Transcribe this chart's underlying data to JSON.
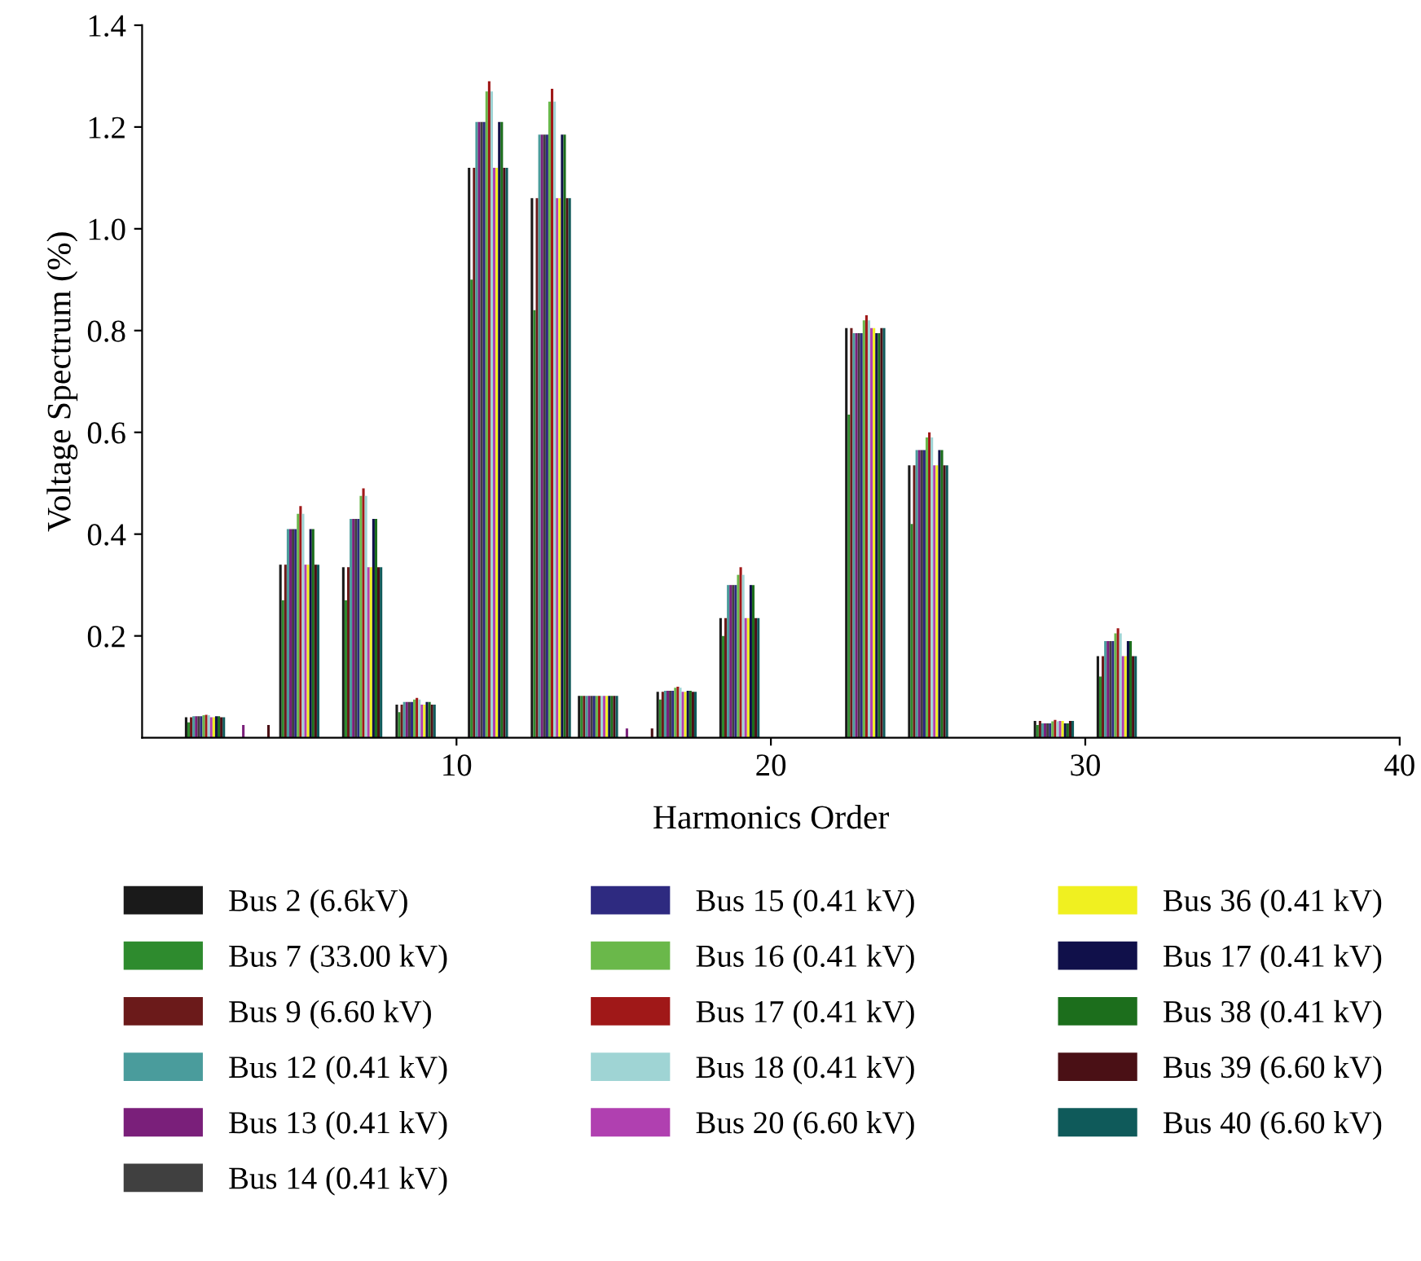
{
  "chart_data": {
    "type": "bar",
    "xlabel": "Harmonics Order",
    "ylabel": "Voltage Spectrum (%)",
    "x": [
      2,
      3.5,
      5,
      7,
      8.7,
      11,
      13,
      14.5,
      15.7,
      17,
      19,
      23,
      25,
      29,
      31
    ],
    "xlim": [
      0,
      40
    ],
    "xticks": [
      10,
      20,
      30,
      40
    ],
    "ylim": [
      0,
      1.4
    ],
    "yticks": [
      0.2,
      0.4,
      0.6,
      0.8,
      {
        "value": 1.0,
        "label": "1.0"
      },
      1.2,
      1.4
    ],
    "grid": false,
    "legend": "bottom",
    "series": [
      {
        "name": "Bus 2 (6.6kV)",
        "color": "#1a1a1a",
        "values": [
          0.04,
          null,
          0.34,
          0.335,
          0.065,
          1.12,
          1.06,
          0.082,
          null,
          0.09,
          0.235,
          0.805,
          0.535,
          0.033,
          0.16
        ]
      },
      {
        "name": "Bus 7 (33.00 kV)",
        "color": "#2e8b2e",
        "values": [
          0.03,
          null,
          0.27,
          0.27,
          0.05,
          0.9,
          0.84,
          0.082,
          null,
          0.075,
          0.2,
          0.635,
          0.42,
          0.025,
          0.12
        ]
      },
      {
        "name": "Bus 9 (6.60 kV)",
        "color": "#6b1a1a",
        "values": [
          0.04,
          null,
          0.34,
          0.335,
          0.065,
          1.12,
          1.06,
          0.082,
          null,
          0.09,
          0.235,
          0.805,
          0.535,
          0.033,
          0.16
        ]
      },
      {
        "name": "Bus 12 (0.41 kV)",
        "color": "#4a9c9c",
        "values": [
          0.042,
          null,
          0.41,
          0.43,
          0.07,
          1.21,
          1.185,
          0.082,
          null,
          0.092,
          0.3,
          0.795,
          0.565,
          0.028,
          0.19
        ]
      },
      {
        "name": "Bus 13 (0.41 kV)",
        "color": "#7a1f7a",
        "values": [
          0.042,
          0.025,
          0.41,
          0.43,
          0.07,
          1.21,
          1.185,
          0.082,
          0.018,
          0.092,
          0.3,
          0.795,
          0.565,
          0.028,
          0.19
        ]
      },
      {
        "name": "Bus 14 (0.41 kV)",
        "color": "#404040",
        "values": [
          0.042,
          null,
          0.41,
          0.43,
          0.07,
          1.21,
          1.185,
          0.082,
          null,
          0.092,
          0.3,
          0.795,
          0.565,
          0.028,
          0.19
        ]
      },
      {
        "name": "Bus 15 (0.41 kV)",
        "color": "#2e2a80",
        "values": [
          0.042,
          null,
          0.41,
          0.43,
          0.07,
          1.21,
          1.185,
          0.082,
          null,
          0.092,
          0.3,
          0.795,
          0.565,
          0.028,
          0.19
        ]
      },
      {
        "name": "Bus 16 (0.41 kV)",
        "color": "#6ab84a",
        "values": [
          0.044,
          null,
          0.44,
          0.475,
          0.075,
          1.27,
          1.25,
          0.082,
          null,
          0.098,
          0.32,
          0.82,
          0.59,
          0.032,
          0.205
        ]
      },
      {
        "name": "Bus 17 (0.41 kV)",
        "color": "#a01818",
        "values": [
          0.045,
          null,
          0.455,
          0.49,
          0.078,
          1.29,
          1.275,
          0.082,
          null,
          0.1,
          0.335,
          0.83,
          0.6,
          0.035,
          0.215
        ]
      },
      {
        "name": "Bus 18 (0.41 kV)",
        "color": "#9fd4d4",
        "values": [
          0.044,
          null,
          0.44,
          0.475,
          0.075,
          1.27,
          1.25,
          0.082,
          null,
          0.098,
          0.32,
          0.82,
          0.59,
          0.032,
          0.205
        ]
      },
      {
        "name": "Bus 20 (6.60 kV)",
        "color": "#b040b0",
        "values": [
          0.04,
          null,
          0.34,
          0.335,
          0.065,
          1.12,
          1.06,
          0.082,
          null,
          0.09,
          0.235,
          0.805,
          0.535,
          0.033,
          0.16
        ]
      },
      {
        "name": "Bus 36 (0.41 kV)",
        "color": "#f0f020",
        "values": [
          0.04,
          null,
          0.34,
          0.335,
          0.065,
          1.12,
          1.06,
          0.082,
          null,
          0.09,
          0.235,
          0.805,
          0.535,
          0.033,
          0.16
        ]
      },
      {
        "name": "Bus 17 (0.41 kV)",
        "color": "#10104a",
        "values": [
          0.042,
          null,
          0.41,
          0.43,
          0.07,
          1.21,
          1.185,
          0.082,
          null,
          0.092,
          0.3,
          0.795,
          0.565,
          0.028,
          0.19
        ]
      },
      {
        "name": "Bus 38 (0.41 kV)",
        "color": "#1c6e1c",
        "values": [
          0.042,
          null,
          0.41,
          0.43,
          0.07,
          1.21,
          1.185,
          0.082,
          null,
          0.092,
          0.3,
          0.795,
          0.565,
          0.028,
          0.19
        ]
      },
      {
        "name": "Bus 39 (6.60 kV)",
        "color": "#4a1015",
        "values": [
          0.04,
          0.025,
          0.34,
          0.335,
          0.065,
          1.12,
          1.06,
          0.082,
          0.018,
          0.09,
          0.235,
          0.805,
          0.535,
          0.033,
          0.16
        ]
      },
      {
        "name": "Bus 40 (6.60 kV)",
        "color": "#0f5a5a",
        "values": [
          0.04,
          null,
          0.34,
          0.335,
          0.065,
          1.12,
          1.06,
          0.082,
          null,
          0.09,
          0.235,
          0.805,
          0.535,
          0.033,
          0.16
        ]
      }
    ]
  }
}
